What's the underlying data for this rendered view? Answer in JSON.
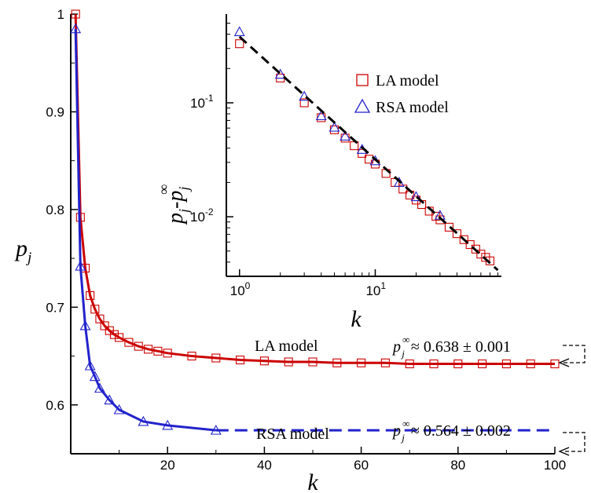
{
  "chart_data": [
    {
      "id": "main",
      "type": "line",
      "xlabel": "k",
      "ylabel": "p",
      "ylabel_sub": "j",
      "xlim": [
        0,
        100
      ],
      "ylim": [
        0.55,
        1.0
      ],
      "x_ticks": [
        20,
        40,
        60,
        80,
        100
      ],
      "x_tick_labels": [
        "20",
        "40",
        "60",
        "80",
        "100"
      ],
      "y_ticks": [
        0.6,
        0.7,
        0.8,
        0.9,
        1.0
      ],
      "y_tick_labels": [
        "0.6",
        "0.7",
        "0.8",
        "0.9",
        "1"
      ],
      "series": [
        {
          "id": "la",
          "label": "LA model",
          "color": "#cc0000",
          "marker": "square",
          "x": [
            1,
            2,
            3,
            4,
            5,
            6,
            7,
            8,
            9,
            10,
            12,
            14,
            16,
            18,
            20,
            25,
            30,
            35,
            40,
            45,
            50,
            55,
            60,
            65,
            70,
            75,
            80,
            85,
            90,
            95,
            100
          ],
          "y": [
            1.0,
            0.792,
            0.74,
            0.712,
            0.698,
            0.688,
            0.681,
            0.676,
            0.672,
            0.669,
            0.664,
            0.66,
            0.657,
            0.655,
            0.653,
            0.65,
            0.648,
            0.646,
            0.645,
            0.644,
            0.644,
            0.643,
            0.643,
            0.643,
            0.642,
            0.642,
            0.642,
            0.642,
            0.642,
            0.642,
            0.642
          ]
        },
        {
          "id": "rsa",
          "label": "RSA model",
          "color": "#2222cc",
          "marker": "triangle",
          "x": [
            1,
            2,
            3,
            4,
            5,
            6,
            8,
            10,
            15,
            20,
            30
          ],
          "y": [
            0.985,
            0.742,
            0.681,
            0.64,
            0.629,
            0.617,
            0.605,
            0.595,
            0.583,
            0.579,
            0.574
          ]
        }
      ],
      "asymptotes": [
        {
          "series": "la",
          "value": 0.643,
          "from_x": 100,
          "to_x": 100,
          "style": "dashed",
          "color": "#cc0000"
        },
        {
          "series": "rsa",
          "value": 0.574,
          "from_x": 30,
          "to_x": 100,
          "style": "dashed",
          "color": "#2222cc"
        }
      ],
      "annotations": [
        {
          "id": "la-label",
          "text": "LA model"
        },
        {
          "id": "rsa-label",
          "text": "RSA model"
        },
        {
          "id": "la-pinf",
          "symbol": "p",
          "sub": "j",
          "sup": "∞",
          "text": "≈ 0.638 ± 0.001"
        },
        {
          "id": "rsa-pinf",
          "symbol": "p",
          "sub": "j",
          "sup": "∞",
          "text": "≈ 0.564 ± 0.002"
        }
      ]
    },
    {
      "id": "inset",
      "type": "scatter",
      "log_x": true,
      "log_y": true,
      "xlabel": "k",
      "ylabel_parts": [
        "p",
        "j",
        "-p",
        "j",
        "∞"
      ],
      "xlim": [
        0.8,
        85
      ],
      "ylim": [
        0.003,
        0.6
      ],
      "x_ticks": [
        1,
        10
      ],
      "x_tick_base": "10",
      "x_tick_exps": [
        "0",
        "1"
      ],
      "y_ticks": [
        0.01,
        0.1
      ],
      "y_tick_base": "10",
      "y_tick_exps": [
        "-2",
        "-1"
      ],
      "legend_position": "upper-right",
      "series": [
        {
          "id": "la",
          "label": "LA model",
          "color": "#cc0000",
          "marker": "square",
          "x": [
            1,
            2,
            3,
            4,
            5,
            6,
            7,
            8,
            9,
            10,
            12,
            14,
            16,
            18,
            20,
            22,
            25,
            28,
            30,
            35,
            40,
            45,
            50,
            55,
            60,
            65,
            70
          ],
          "y": [
            0.33,
            0.165,
            0.1,
            0.074,
            0.058,
            0.049,
            0.042,
            0.036,
            0.032,
            0.029,
            0.024,
            0.02,
            0.0175,
            0.0155,
            0.014,
            0.0128,
            0.0112,
            0.0101,
            0.0094,
            0.0081,
            0.0071,
            0.0063,
            0.0057,
            0.0052,
            0.0047,
            0.0044,
            0.0041
          ]
        },
        {
          "id": "rsa",
          "label": "RSA model",
          "color": "#2222cc",
          "marker": "triangle",
          "x": [
            1,
            2,
            3,
            4,
            5,
            6,
            8,
            10,
            15,
            20,
            30
          ],
          "y": [
            0.42,
            0.178,
            0.114,
            0.077,
            0.061,
            0.051,
            0.039,
            0.031,
            0.02,
            0.015,
            0.0103
          ]
        }
      ],
      "fit_line": {
        "color": "#000000",
        "style": "dashed",
        "x": [
          1,
          80
        ],
        "y": [
          0.38,
          0.0034
        ]
      }
    }
  ]
}
